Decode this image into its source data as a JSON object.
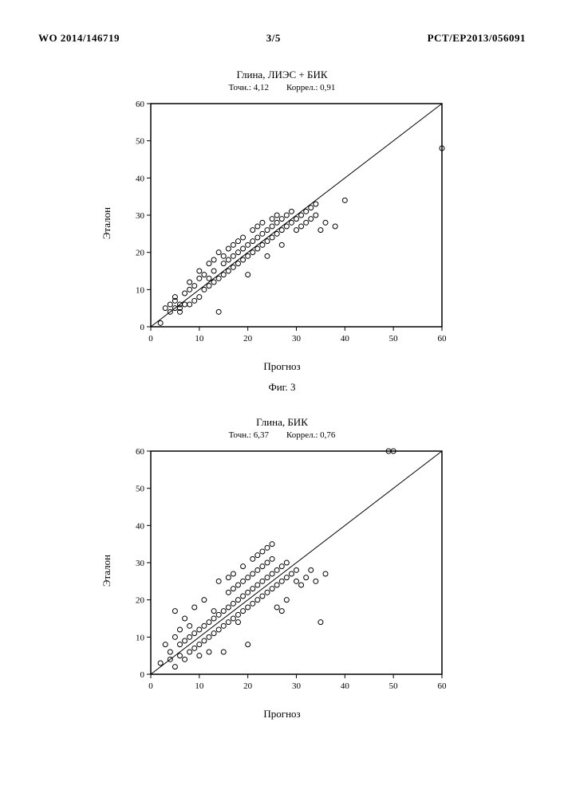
{
  "header": {
    "left": "WO 2014/146719",
    "center": "3/5",
    "right": "PCT/EP2013/056091"
  },
  "chart1": {
    "type": "scatter",
    "title": "Глина, ЛИЭС + БИК",
    "sub_left_label": "Точн.:",
    "sub_left_value": "4,12",
    "sub_right_label": "Коррел.:",
    "sub_right_value": "0,91",
    "xlabel": "Прогноз",
    "ylabel": "Эталон",
    "xlim": [
      0,
      60
    ],
    "ylim": [
      0,
      60
    ],
    "xticks": [
      0,
      10,
      20,
      30,
      40,
      50,
      60
    ],
    "yticks": [
      0,
      10,
      20,
      30,
      40,
      50,
      60
    ],
    "marker_stroke": "#000000",
    "marker_fill": "none",
    "marker_radius": 3,
    "line_color": "#000000",
    "line_width": 1,
    "axis_color": "#000000",
    "tick_fontsize": 11,
    "diag": [
      [
        0,
        0
      ],
      [
        60,
        60
      ]
    ],
    "points": [
      [
        2,
        1
      ],
      [
        3,
        5
      ],
      [
        4,
        4
      ],
      [
        4,
        6
      ],
      [
        5,
        5
      ],
      [
        5,
        7
      ],
      [
        5,
        8
      ],
      [
        6,
        5
      ],
      [
        6,
        6
      ],
      [
        6,
        4
      ],
      [
        7,
        6
      ],
      [
        7,
        9
      ],
      [
        8,
        6
      ],
      [
        8,
        10
      ],
      [
        8,
        12
      ],
      [
        9,
        7
      ],
      [
        9,
        11
      ],
      [
        10,
        8
      ],
      [
        10,
        13
      ],
      [
        10,
        15
      ],
      [
        11,
        10
      ],
      [
        11,
        14
      ],
      [
        12,
        11
      ],
      [
        12,
        13
      ],
      [
        12,
        17
      ],
      [
        13,
        12
      ],
      [
        13,
        15
      ],
      [
        13,
        18
      ],
      [
        14,
        13
      ],
      [
        14,
        20
      ],
      [
        14,
        4
      ],
      [
        15,
        14
      ],
      [
        15,
        17
      ],
      [
        15,
        19
      ],
      [
        16,
        15
      ],
      [
        16,
        18
      ],
      [
        16,
        21
      ],
      [
        17,
        16
      ],
      [
        17,
        19
      ],
      [
        17,
        22
      ],
      [
        18,
        17
      ],
      [
        18,
        20
      ],
      [
        18,
        23
      ],
      [
        19,
        18
      ],
      [
        19,
        21
      ],
      [
        19,
        24
      ],
      [
        20,
        19
      ],
      [
        20,
        22
      ],
      [
        20,
        14
      ],
      [
        21,
        20
      ],
      [
        21,
        23
      ],
      [
        21,
        26
      ],
      [
        22,
        21
      ],
      [
        22,
        24
      ],
      [
        22,
        27
      ],
      [
        23,
        22
      ],
      [
        23,
        25
      ],
      [
        23,
        28
      ],
      [
        24,
        23
      ],
      [
        24,
        26
      ],
      [
        24,
        19
      ],
      [
        25,
        24
      ],
      [
        25,
        27
      ],
      [
        25,
        29
      ],
      [
        26,
        25
      ],
      [
        26,
        28
      ],
      [
        26,
        30
      ],
      [
        27,
        26
      ],
      [
        27,
        29
      ],
      [
        27,
        22
      ],
      [
        28,
        27
      ],
      [
        28,
        30
      ],
      [
        29,
        28
      ],
      [
        29,
        31
      ],
      [
        30,
        29
      ],
      [
        30,
        26
      ],
      [
        31,
        30
      ],
      [
        31,
        27
      ],
      [
        32,
        31
      ],
      [
        32,
        28
      ],
      [
        33,
        32
      ],
      [
        33,
        29
      ],
      [
        34,
        33
      ],
      [
        34,
        30
      ],
      [
        35,
        26
      ],
      [
        36,
        28
      ],
      [
        38,
        27
      ],
      [
        40,
        34
      ],
      [
        60,
        48
      ]
    ]
  },
  "fig1_caption": "Фиг. 3",
  "chart2": {
    "type": "scatter",
    "title": "Глина, БИК",
    "sub_left_label": "Точн.:",
    "sub_left_value": "6,37",
    "sub_right_label": "Коррел.:",
    "sub_right_value": "0,76",
    "xlabel": "Прогноз",
    "ylabel": "Эталон",
    "xlim": [
      0,
      60
    ],
    "ylim": [
      0,
      60
    ],
    "xticks": [
      0,
      10,
      20,
      30,
      40,
      50,
      60
    ],
    "yticks": [
      0,
      10,
      20,
      30,
      40,
      50,
      60
    ],
    "marker_stroke": "#000000",
    "marker_fill": "none",
    "marker_radius": 3,
    "line_color": "#000000",
    "line_width": 1,
    "axis_color": "#000000",
    "tick_fontsize": 11,
    "diag": [
      [
        0,
        0
      ],
      [
        60,
        60
      ]
    ],
    "points": [
      [
        2,
        3
      ],
      [
        3,
        8
      ],
      [
        4,
        4
      ],
      [
        4,
        6
      ],
      [
        5,
        2
      ],
      [
        5,
        10
      ],
      [
        5,
        17
      ],
      [
        6,
        5
      ],
      [
        6,
        8
      ],
      [
        6,
        12
      ],
      [
        7,
        4
      ],
      [
        7,
        9
      ],
      [
        7,
        15
      ],
      [
        8,
        6
      ],
      [
        8,
        10
      ],
      [
        8,
        13
      ],
      [
        9,
        7
      ],
      [
        9,
        11
      ],
      [
        9,
        18
      ],
      [
        10,
        8
      ],
      [
        10,
        12
      ],
      [
        10,
        5
      ],
      [
        11,
        9
      ],
      [
        11,
        13
      ],
      [
        11,
        20
      ],
      [
        12,
        10
      ],
      [
        12,
        14
      ],
      [
        12,
        6
      ],
      [
        13,
        11
      ],
      [
        13,
        15
      ],
      [
        13,
        17
      ],
      [
        14,
        12
      ],
      [
        14,
        16
      ],
      [
        14,
        25
      ],
      [
        15,
        13
      ],
      [
        15,
        17
      ],
      [
        15,
        6
      ],
      [
        16,
        14
      ],
      [
        16,
        18
      ],
      [
        16,
        22
      ],
      [
        16,
        26
      ],
      [
        17,
        15
      ],
      [
        17,
        19
      ],
      [
        17,
        23
      ],
      [
        17,
        27
      ],
      [
        18,
        16
      ],
      [
        18,
        20
      ],
      [
        18,
        24
      ],
      [
        18,
        14
      ],
      [
        19,
        17
      ],
      [
        19,
        21
      ],
      [
        19,
        25
      ],
      [
        19,
        29
      ],
      [
        20,
        18
      ],
      [
        20,
        22
      ],
      [
        20,
        8
      ],
      [
        20,
        26
      ],
      [
        21,
        19
      ],
      [
        21,
        23
      ],
      [
        21,
        27
      ],
      [
        21,
        31
      ],
      [
        22,
        20
      ],
      [
        22,
        24
      ],
      [
        22,
        28
      ],
      [
        22,
        32
      ],
      [
        23,
        21
      ],
      [
        23,
        25
      ],
      [
        23,
        29
      ],
      [
        23,
        33
      ],
      [
        24,
        22
      ],
      [
        24,
        26
      ],
      [
        24,
        30
      ],
      [
        24,
        34
      ],
      [
        25,
        23
      ],
      [
        25,
        27
      ],
      [
        25,
        31
      ],
      [
        25,
        35
      ],
      [
        26,
        24
      ],
      [
        26,
        28
      ],
      [
        26,
        18
      ],
      [
        27,
        25
      ],
      [
        27,
        29
      ],
      [
        27,
        17
      ],
      [
        28,
        26
      ],
      [
        28,
        30
      ],
      [
        28,
        20
      ],
      [
        29,
        27
      ],
      [
        30,
        28
      ],
      [
        30,
        25
      ],
      [
        31,
        24
      ],
      [
        32,
        26
      ],
      [
        33,
        28
      ],
      [
        34,
        25
      ],
      [
        35,
        14
      ],
      [
        36,
        27
      ],
      [
        49,
        60
      ],
      [
        50,
        60
      ]
    ]
  }
}
